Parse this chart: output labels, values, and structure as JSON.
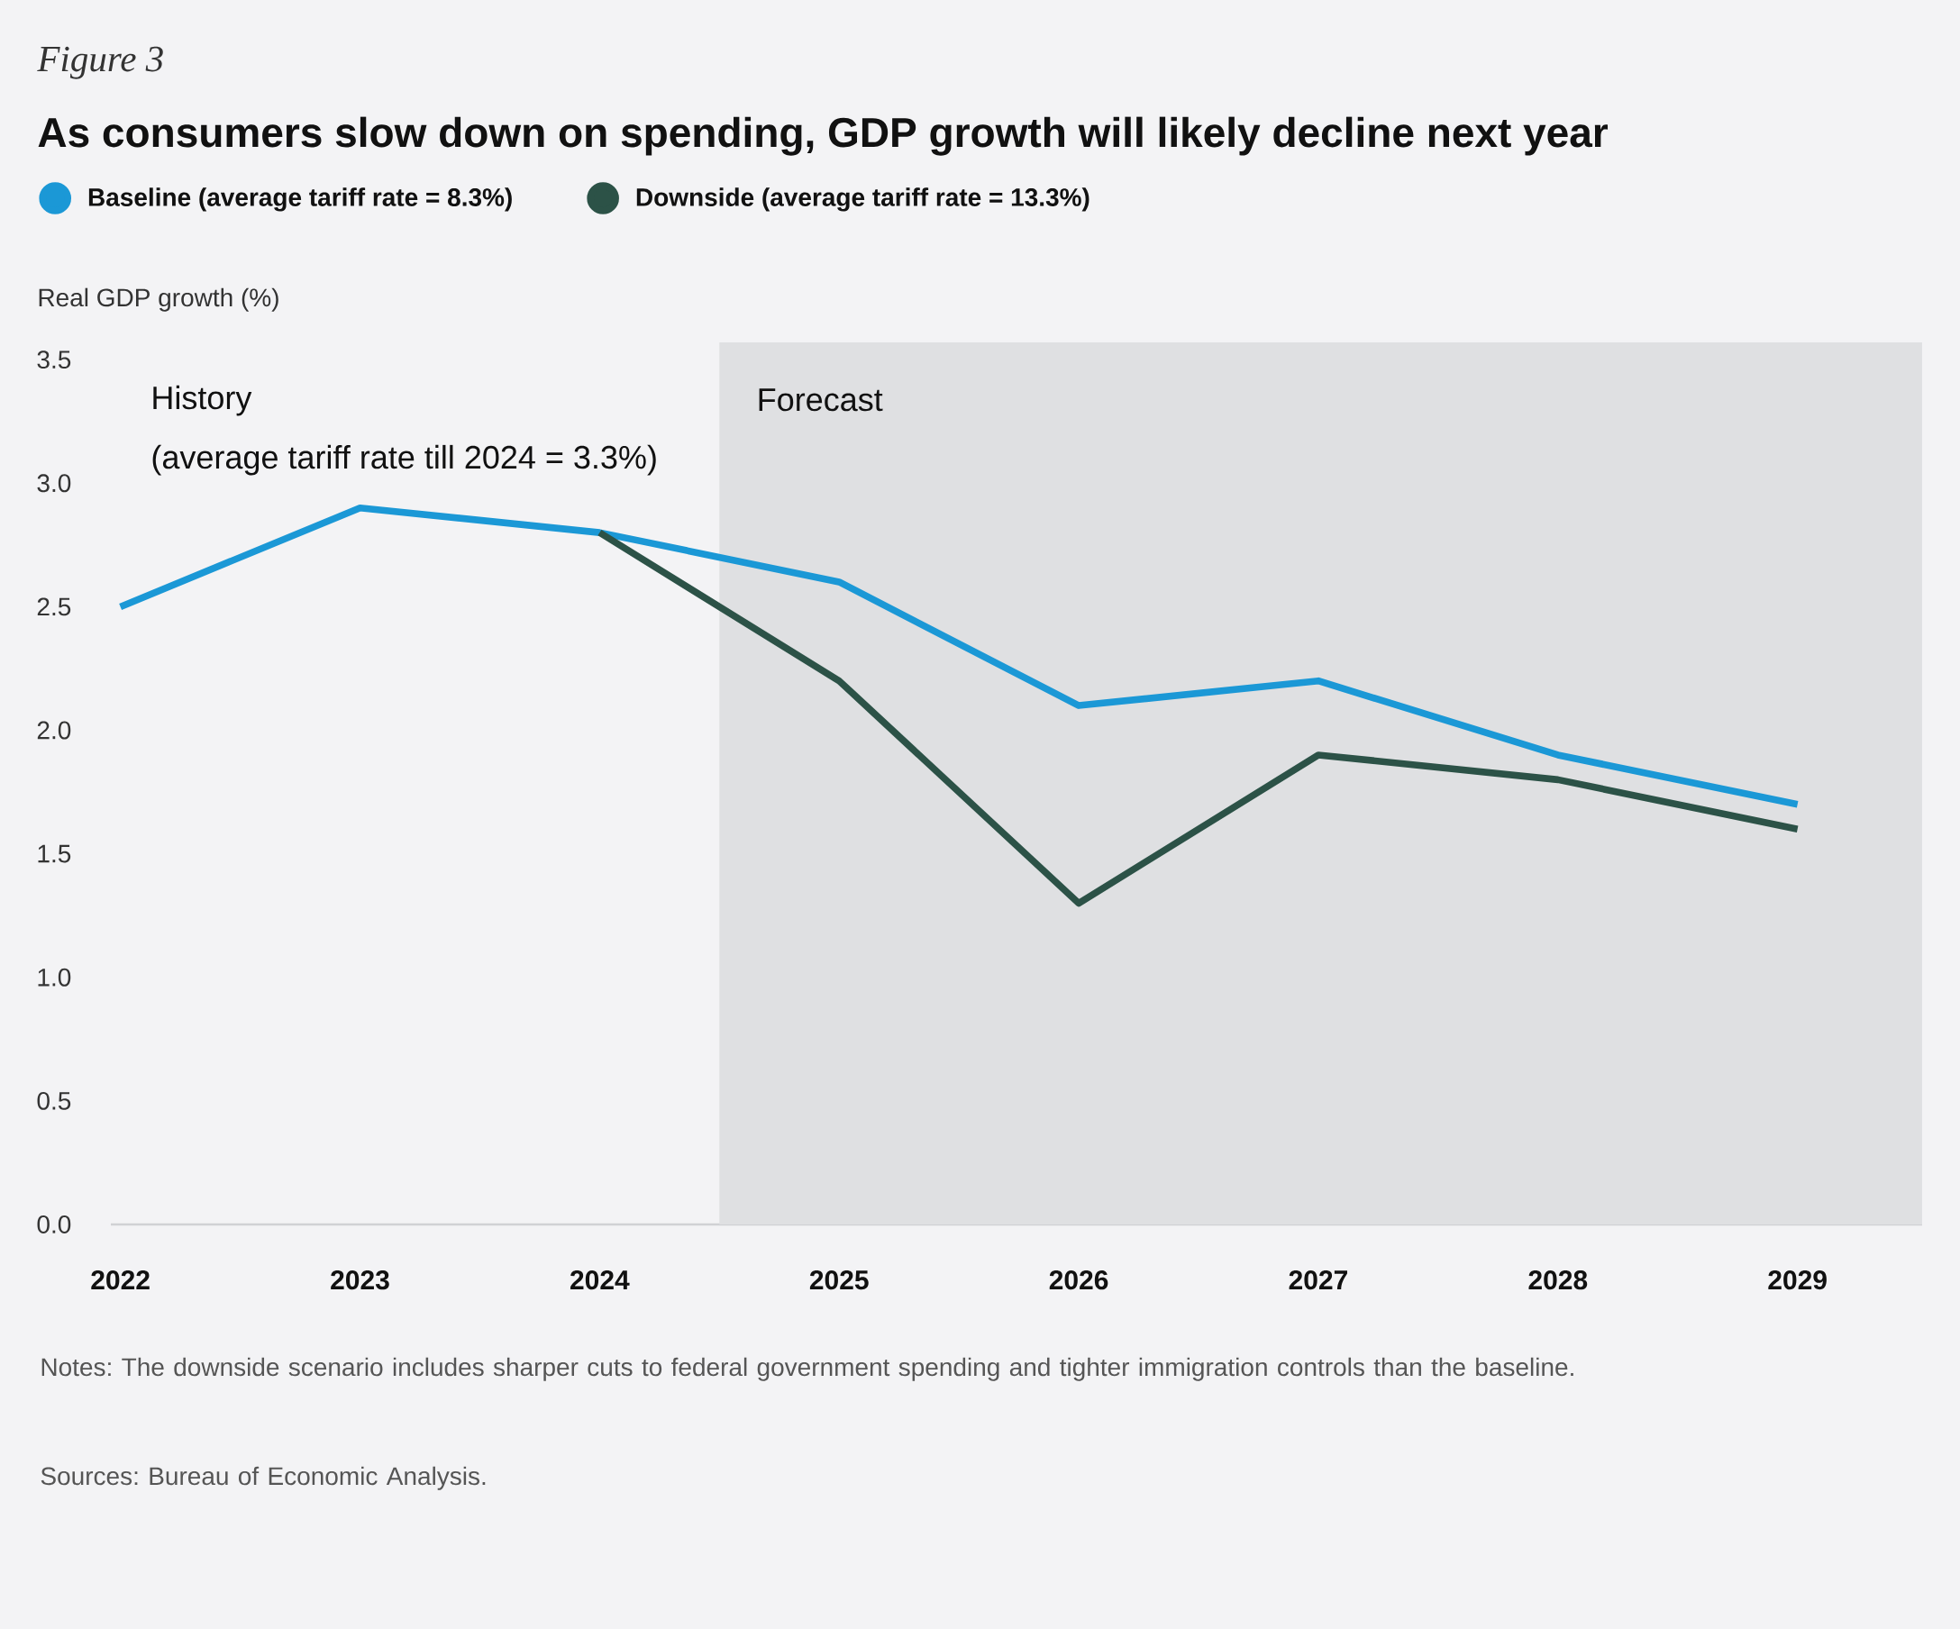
{
  "chart_data": {
    "type": "line",
    "title": "As consumers slow down on spending, GDP growth will likely decline next year",
    "ylabel": "Real GDP growth (%)",
    "x": [
      2022,
      2023,
      2024,
      2025,
      2026,
      2027,
      2028,
      2029
    ],
    "series": [
      {
        "name": "Baseline (average tariff rate = 8.3%)",
        "color": "#1b98d6",
        "values": [
          2.5,
          2.9,
          2.8,
          2.6,
          2.1,
          2.2,
          1.9,
          1.7
        ]
      },
      {
        "name": "Downside (average tariff rate = 13.3%)",
        "color": "#2c5247",
        "values": [
          null,
          null,
          2.8,
          2.2,
          1.3,
          1.9,
          1.8,
          1.6
        ]
      }
    ],
    "xlim": [
      2021.96,
      2029.52
    ],
    "xticks": [
      2022,
      2023,
      2024,
      2025,
      2026,
      2027,
      2028,
      2029
    ],
    "ylim": [
      0,
      3.57
    ],
    "yticks": [
      {
        "value": 0,
        "label": "0.0"
      },
      0.5,
      {
        "value": 1,
        "label": "1.0"
      },
      1.5,
      {
        "value": 2,
        "label": "2.0"
      },
      2.5,
      {
        "value": 3,
        "label": "3.0"
      },
      3.5
    ],
    "bands": [
      {
        "axis": "x",
        "from": 2024.5,
        "to": 2029.52,
        "label": "Forecast",
        "color": "#dfe0e2"
      }
    ],
    "annotations": [
      "Figure 3",
      "History",
      "(average tariff rate till 2024 = 3.3%)",
      "Notes: The downside scenario includes sharper cuts to federal government spending and tighter immigration controls than the baseline.",
      "Sources: Bureau of Economic Analysis."
    ],
    "legend": "top left",
    "marker": "none",
    "line_style": "solid"
  }
}
